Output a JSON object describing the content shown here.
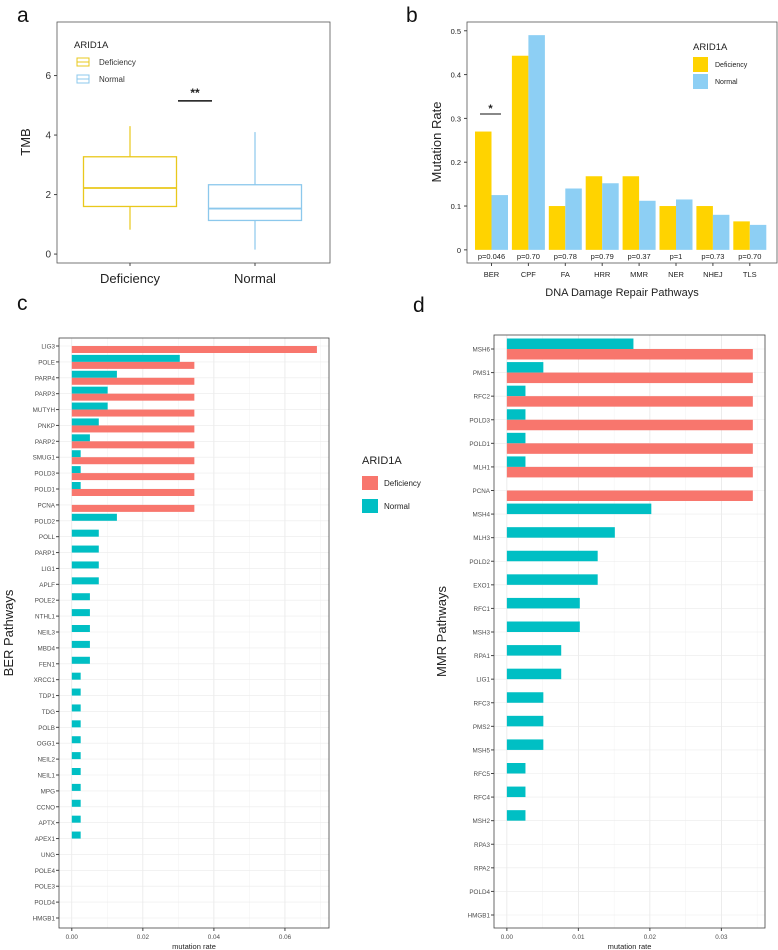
{
  "panel_labels": [
    "a",
    "b",
    "c",
    "d"
  ],
  "colors": {
    "deficiency_box": "#E9C81C",
    "normal_box": "#8CC8EC",
    "deficiency_bar_b": "#FFD300",
    "normal_bar_b": "#8DCFF4",
    "deficiency_bar": "#F8766D",
    "normal_bar": "#00BFC4"
  },
  "chart_data": [
    {
      "panel": "a",
      "type": "box",
      "ylabel": "TMB",
      "xlabel": "",
      "categories": [
        "Deficiency",
        "Normal"
      ],
      "yticks": [
        "0",
        "2",
        "4",
        "6"
      ],
      "ylim": [
        -0.3,
        7.8
      ],
      "grid": false,
      "legend": {
        "title": "ARID1A",
        "entries": [
          "Deficiency",
          "Normal"
        ],
        "position": "top-left"
      },
      "boxes": [
        {
          "min": 0.82,
          "q1": 1.6,
          "median": 2.22,
          "q3": 3.27,
          "max": 4.3
        },
        {
          "min": 0.15,
          "q1": 1.13,
          "median": 1.53,
          "q3": 2.33,
          "max": 4.1
        }
      ],
      "significance": {
        "label": "**",
        "y": 5.15
      }
    },
    {
      "panel": "b",
      "type": "bar",
      "ylabel": "Mutation Rate",
      "xlabel": "DNA Damage Repair Pathways",
      "categories": [
        "BER",
        "CPF",
        "FA",
        "HRR",
        "MMR",
        "NER",
        "NHEJ",
        "TLS"
      ],
      "yticks": [
        "0",
        "0.1",
        "0.2",
        "0.3",
        "0.4",
        "0.5"
      ],
      "ylim": [
        -0.03,
        0.52
      ],
      "grid": false,
      "legend": {
        "title": "ARID1A",
        "entries": [
          "Deficiency",
          "Normal"
        ],
        "position": "top-right"
      },
      "series": [
        {
          "name": "Deficiency",
          "values": [
            0.27,
            0.443,
            0.1,
            0.168,
            0.168,
            0.1,
            0.1,
            0.065
          ]
        },
        {
          "name": "Normal",
          "values": [
            0.125,
            0.49,
            0.14,
            0.152,
            0.112,
            0.115,
            0.08,
            0.057
          ]
        }
      ],
      "p_values": [
        "p=0.046",
        "p=0.70",
        "p=0.78",
        "p=0.79",
        "p=0.37",
        "p=1",
        "p=0.73",
        "p=0.70"
      ],
      "significance": {
        "label": "*",
        "category": "BER",
        "y": 0.31
      }
    },
    {
      "panel": "c",
      "type": "bar",
      "orientation": "horizontal",
      "ylabel": "BER Pathways",
      "xlabel": "mutation rate",
      "xticks": [
        "0.00",
        "0.02",
        "0.04",
        "0.06"
      ],
      "xlim": [
        -0.0036,
        0.0724
      ],
      "grid": true,
      "categories": [
        "LIG3",
        "POLE",
        "PARP4",
        "PARP3",
        "MUTYH",
        "PNKP",
        "PARP2",
        "SMUG1",
        "POLD3",
        "POLD1",
        "PCNA",
        "POLD2",
        "POLL",
        "PARP1",
        "LIG1",
        "APLF",
        "POLE2",
        "NTHL1",
        "NEIL3",
        "MBD4",
        "FEN1",
        "XRCC1",
        "TDP1",
        "TDG",
        "POLB",
        "OGG1",
        "NEIL2",
        "NEIL1",
        "MPG",
        "CCNO",
        "APTX",
        "APEX1",
        "UNG",
        "POLE4",
        "POLE3",
        "POLD4",
        "HMGB1"
      ],
      "series": [
        {
          "name": "Deficiency",
          "values": [
            0.069,
            0.0345,
            0.0345,
            0.0345,
            0.0345,
            0.0345,
            0.0345,
            0.0345,
            0.0345,
            0.0345,
            0.0345,
            0,
            0,
            0,
            0,
            0,
            0,
            0,
            0,
            0,
            0,
            0,
            0,
            0,
            0,
            0,
            0,
            0,
            0,
            0,
            0,
            0,
            0,
            0,
            0,
            0,
            0
          ]
        },
        {
          "name": "Normal",
          "values": [
            0,
            0.0304,
            0.0127,
            0.0101,
            0.0101,
            0.0076,
            0.0051,
            0.0025,
            0.0025,
            0.0025,
            0,
            0.0127,
            0.0076,
            0.0076,
            0.0076,
            0.0076,
            0.0051,
            0.0051,
            0.0051,
            0.0051,
            0.0051,
            0.0025,
            0.0025,
            0.0025,
            0.0025,
            0.0025,
            0.0025,
            0.0025,
            0.0025,
            0.0025,
            0.0025,
            0.0025,
            0,
            0,
            0,
            0,
            0
          ]
        }
      ]
    },
    {
      "panel": "d",
      "type": "bar",
      "orientation": "horizontal",
      "ylabel": "MMR Pathways",
      "xlabel": "mutation rate",
      "xticks": [
        "0.00",
        "0.01",
        "0.02",
        "0.03"
      ],
      "xlim": [
        -0.0018,
        0.0361
      ],
      "grid": true,
      "categories": [
        "MSH6",
        "PMS1",
        "RFC2",
        "POLD3",
        "POLD1",
        "MLH1",
        "PCNA",
        "MSH4",
        "MLH3",
        "POLD2",
        "EXO1",
        "RFC1",
        "MSH3",
        "RPA1",
        "LIG1",
        "RFC3",
        "PMS2",
        "MSH5",
        "RFC5",
        "RFC4",
        "MSH2",
        "RPA3",
        "RPA2",
        "POLD4",
        "HMGB1"
      ],
      "series": [
        {
          "name": "Deficiency",
          "values": [
            0.0344,
            0.0344,
            0.0344,
            0.0344,
            0.0344,
            0.0344,
            0.0344,
            0,
            0,
            0,
            0,
            0,
            0,
            0,
            0,
            0,
            0,
            0,
            0,
            0,
            0,
            0,
            0,
            0,
            0
          ]
        },
        {
          "name": "Normal",
          "values": [
            0.0177,
            0.0051,
            0.0026,
            0.0026,
            0.0026,
            0.0026,
            0,
            0.0202,
            0.0151,
            0.0127,
            0.0127,
            0.0102,
            0.0102,
            0.0076,
            0.0076,
            0.0051,
            0.0051,
            0.0051,
            0.0026,
            0.0026,
            0.0026,
            0,
            0,
            0,
            0
          ]
        }
      ]
    }
  ],
  "shared_legend": {
    "title": "ARID1A",
    "entries": [
      "Deficiency",
      "Normal"
    ]
  }
}
